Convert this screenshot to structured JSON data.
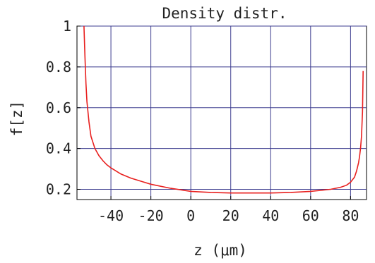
{
  "chart_data": {
    "type": "line",
    "title": "Density distr.",
    "xlabel": "z  (μm)",
    "ylabel": "f[z]",
    "xlim": [
      -57,
      88
    ],
    "ylim": [
      0.15,
      1.0
    ],
    "grid": true,
    "x_ticks": [
      -40,
      -20,
      0,
      20,
      40,
      60,
      80
    ],
    "x_tick_labels": [
      "-40",
      "-20",
      "0",
      "20",
      "40",
      "60",
      "80"
    ],
    "y_ticks": [
      0.2,
      0.4,
      0.6,
      0.8,
      1
    ],
    "y_tick_labels": [
      "0.2",
      "0.4",
      "0.6",
      "0.8",
      "1"
    ],
    "series": [
      {
        "color": "#e8201f",
        "x": [
          -53.5,
          -53.0,
          -52.5,
          -52.0,
          -51.0,
          -50.0,
          -48.0,
          -46.0,
          -44.0,
          -42.0,
          -40.0,
          -35.0,
          -30.0,
          -25.0,
          -20.0,
          -10.0,
          0.0,
          10.0,
          20.0,
          30.0,
          40.0,
          50.0,
          60.0,
          65.0,
          70.0,
          75.0,
          78.0,
          80.0,
          82.0,
          83.0,
          84.0,
          84.5,
          85.0,
          85.5,
          86.0,
          86.3
        ],
        "y": [
          1.0,
          0.85,
          0.72,
          0.63,
          0.53,
          0.46,
          0.4,
          0.365,
          0.34,
          0.32,
          0.305,
          0.275,
          0.255,
          0.24,
          0.225,
          0.205,
          0.19,
          0.185,
          0.182,
          0.182,
          0.182,
          0.185,
          0.19,
          0.195,
          0.2,
          0.21,
          0.22,
          0.235,
          0.26,
          0.29,
          0.33,
          0.36,
          0.4,
          0.46,
          0.58,
          0.78
        ]
      }
    ]
  }
}
